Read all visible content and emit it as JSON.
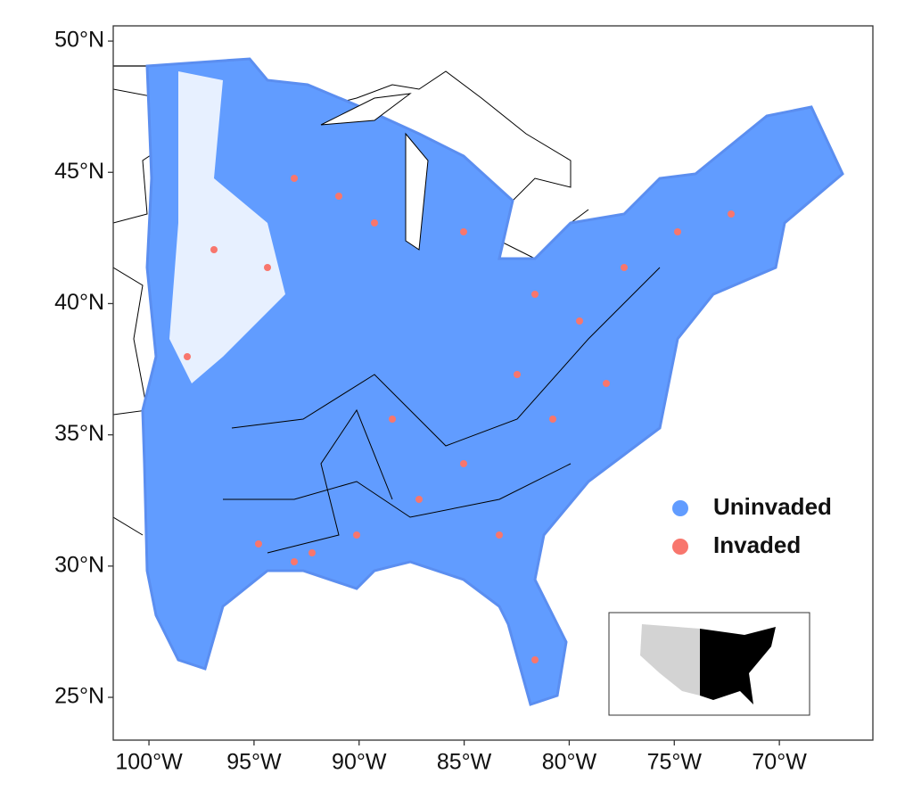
{
  "map": {
    "legend": [
      {
        "name": "Uninvaded",
        "color": "#619cff"
      },
      {
        "name": "Invaded",
        "color": "#f8766d"
      }
    ],
    "xlim": [
      -101.7,
      -65.55
    ],
    "ylim": [
      23.37,
      50.58
    ],
    "xticks": [
      {
        "value": -100,
        "label": "100°W"
      },
      {
        "value": -95,
        "label": "95°W"
      },
      {
        "value": -90,
        "label": "90°W"
      },
      {
        "value": -85,
        "label": "85°W"
      },
      {
        "value": -80,
        "label": "80°W"
      },
      {
        "value": -75,
        "label": "75°W"
      },
      {
        "value": -70,
        "label": "70°W"
      }
    ],
    "yticks": [
      {
        "value": 25,
        "label": "25°N"
      },
      {
        "value": 30,
        "label": "30°N"
      },
      {
        "value": 35,
        "label": "35°N"
      },
      {
        "value": 40,
        "label": "40°N"
      },
      {
        "value": 45,
        "label": "45°N"
      },
      {
        "value": 50,
        "label": "50°N"
      }
    ]
  }
}
